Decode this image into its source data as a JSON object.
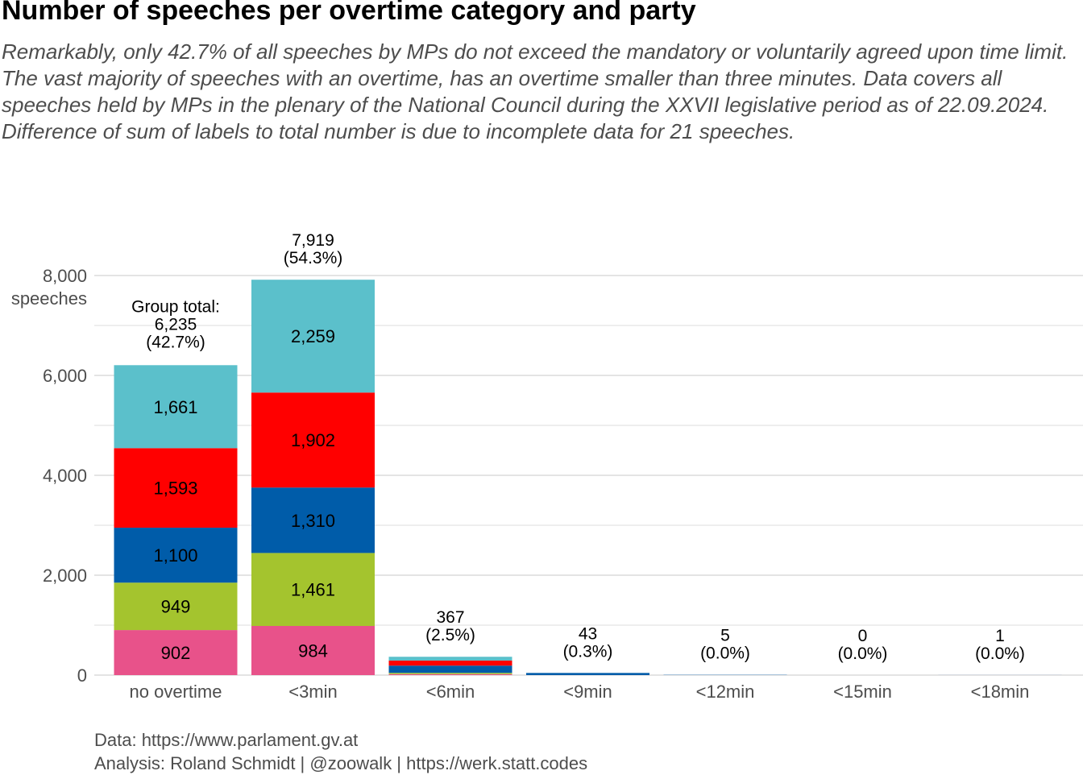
{
  "chart_data": {
    "type": "bar",
    "stacked": true,
    "title": "Number of speeches per overtime category and party",
    "subtitle": "Remarkably, only 42.7% of all speeches by MPs do not exceed the mandatory or voluntarily agreed upon time limit. The vast majority of speeches with an overtime, has an overtime smaller than three minutes. Data covers all speeches held by MPs in the plenary of the National Council during the XXVII legislative period as of 22.09.2024. Difference of sum of labels to total number is due to incomplete data for 21 speeches.",
    "xlabel": "",
    "ylabel": "speeches",
    "ylim": [
      0,
      8000
    ],
    "yticks": [
      0,
      2000,
      4000,
      6000,
      8000
    ],
    "ytick_labels": [
      "0",
      "2,000",
      "4,000",
      "6,000",
      "8,000"
    ],
    "grid": true,
    "legend": "none",
    "categories": [
      "no overtime",
      "<3min",
      "<6min",
      "<9min",
      "<12min",
      "<15min",
      "<18min"
    ],
    "series": [
      {
        "color": "#e8528a",
        "values": [
          902,
          984,
          20,
          0,
          0,
          0,
          0
        ]
      },
      {
        "color": "#a4c42e",
        "values": [
          949,
          1461,
          25,
          0,
          0,
          0,
          0
        ]
      },
      {
        "color": "#005ca9",
        "values": [
          1100,
          1310,
          145,
          43,
          5,
          0,
          1
        ]
      },
      {
        "color": "#ff0000",
        "values": [
          1593,
          1902,
          100,
          0,
          0,
          0,
          0
        ]
      },
      {
        "color": "#5bc0cb",
        "values": [
          1661,
          2259,
          77,
          0,
          0,
          0,
          0
        ]
      }
    ],
    "segment_labels": [
      [
        "902",
        "984",
        "",
        "",
        "",
        "",
        ""
      ],
      [
        "949",
        "1,461",
        "",
        "",
        "",
        "",
        ""
      ],
      [
        "1,100",
        "1,310",
        "",
        "",
        "",
        "",
        ""
      ],
      [
        "1,593",
        "1,902",
        "",
        "",
        "",
        "",
        ""
      ],
      [
        "1,661",
        "2,259",
        "",
        "",
        "",
        "",
        ""
      ]
    ],
    "totals": [
      6235,
      7919,
      367,
      43,
      5,
      0,
      1
    ],
    "total_labels": [
      [
        "Group total:",
        "6,235",
        "(42.7%)"
      ],
      [
        "7,919",
        "(54.3%)"
      ],
      [
        "367",
        "(2.5%)"
      ],
      [
        "43",
        "(0.3%)"
      ],
      [
        "5",
        "(0.0%)"
      ],
      [
        "0",
        "(0.0%)"
      ],
      [
        "1",
        "(0.0%)"
      ]
    ]
  },
  "caption": {
    "line1": "Data: https://www.parlament.gv.at",
    "line2": "Analysis: Roland Schmidt | @zoowalk | https://werk.statt.codes"
  }
}
